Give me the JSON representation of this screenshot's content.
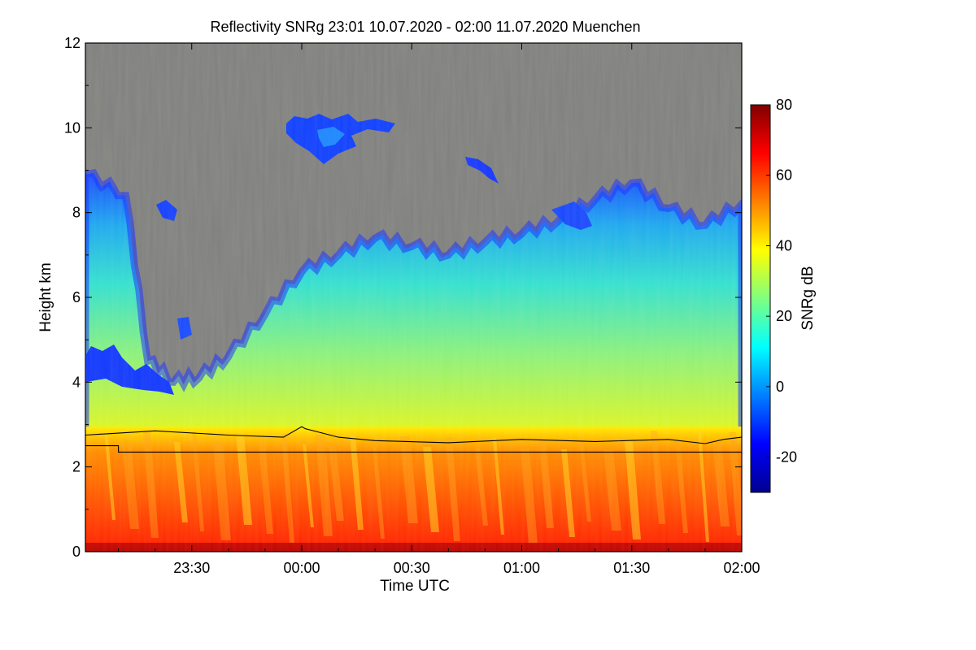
{
  "chart_data": {
    "type": "heatmap",
    "title": "Reflectivity SNRg   23:01 10.07.2020 - 02:00 11.07.2020 Muenchen",
    "xlabel": "Time UTC",
    "ylabel": "Height km",
    "xlim": [
      "23:01",
      "02:00"
    ],
    "ylim": [
      0,
      12
    ],
    "x_ticks": [
      "23:30",
      "00:00",
      "00:30",
      "01:00",
      "01:30",
      "02:00"
    ],
    "y_ticks": [
      "0",
      "2",
      "4",
      "6",
      "8",
      "10",
      "12"
    ],
    "colorbar": {
      "label": "SNRg dB",
      "range": [
        -30,
        80
      ],
      "ticks": [
        "-20",
        "0",
        "20",
        "40",
        "60",
        "80"
      ],
      "colormap": "jet",
      "background_color": "#808080"
    },
    "cloud_top_km": [
      {
        "time": "23:01",
        "top": 8.9
      },
      {
        "time": "23:12",
        "top": 8.4
      },
      {
        "time": "23:18",
        "top": 4.5
      },
      {
        "time": "23:25",
        "top": 4.0
      },
      {
        "time": "23:32",
        "top": 4.1
      },
      {
        "time": "23:40",
        "top": 4.6
      },
      {
        "time": "23:50",
        "top": 5.6
      },
      {
        "time": "00:00",
        "top": 6.6
      },
      {
        "time": "00:10",
        "top": 7.0
      },
      {
        "time": "00:20",
        "top": 7.4
      },
      {
        "time": "00:30",
        "top": 7.2
      },
      {
        "time": "00:40",
        "top": 7.0
      },
      {
        "time": "00:50",
        "top": 7.3
      },
      {
        "time": "01:00",
        "top": 7.5
      },
      {
        "time": "01:10",
        "top": 7.8
      },
      {
        "time": "01:20",
        "top": 8.3
      },
      {
        "time": "01:30",
        "top": 8.7
      },
      {
        "time": "01:40",
        "top": 8.1
      },
      {
        "time": "01:50",
        "top": 7.7
      },
      {
        "time": "02:00",
        "top": 8.2
      }
    ],
    "series": [
      {
        "x": [
          "23:01",
          "23:20",
          "23:40",
          "23:55",
          "00:00",
          "00:01",
          "00:10",
          "00:20",
          "00:40",
          "01:00",
          "01:20",
          "01:40",
          "01:50",
          "01:55",
          "02:00"
        ],
        "y": [
          2.75,
          2.85,
          2.75,
          2.7,
          2.95,
          2.9,
          2.7,
          2.62,
          2.57,
          2.65,
          2.6,
          2.65,
          2.55,
          2.65,
          2.7
        ]
      },
      {
        "x": [
          "23:01",
          "23:10",
          "23:10",
          "00:00",
          "00:01",
          "02:00"
        ],
        "y": [
          2.5,
          2.5,
          2.35,
          2.35,
          2.35,
          2.35
        ]
      }
    ]
  }
}
